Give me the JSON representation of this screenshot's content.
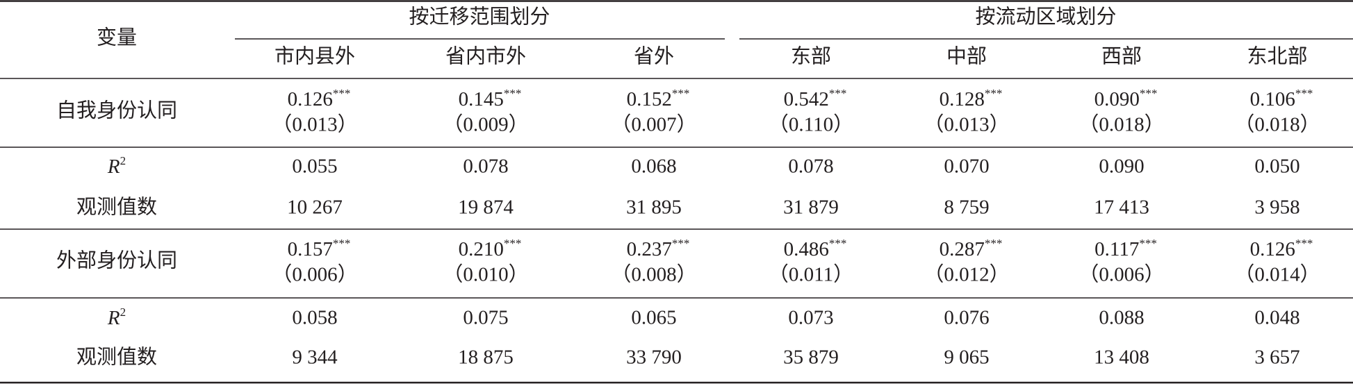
{
  "table": {
    "header": {
      "row_label": "变量",
      "groups": [
        {
          "label": "按迁移范围划分",
          "columns": [
            "市内县外",
            "省内市外",
            "省外"
          ]
        },
        {
          "label": "按流动区域划分",
          "columns": [
            "东部",
            "中部",
            "西部",
            "东北部"
          ]
        }
      ]
    },
    "sections": [
      {
        "label": "自我身份认同",
        "coefficients": [
          {
            "value": "0.126",
            "stars": "***",
            "se": "（0.013）"
          },
          {
            "value": "0.145",
            "stars": "***",
            "se": "（0.009）"
          },
          {
            "value": "0.152",
            "stars": "***",
            "se": "（0.007）"
          },
          {
            "value": "0.542",
            "stars": "***",
            "se": "（0.110）"
          },
          {
            "value": "0.128",
            "stars": "***",
            "se": "（0.013）"
          },
          {
            "value": "0.090",
            "stars": "***",
            "se": "（0.018）"
          },
          {
            "value": "0.106",
            "stars": "***",
            "se": "（0.018）"
          }
        ],
        "r2_label": {
          "base": "R",
          "sup": "2"
        },
        "r2": [
          "0.055",
          "0.078",
          "0.068",
          "0.078",
          "0.070",
          "0.090",
          "0.050"
        ],
        "n_label": "观测值数",
        "n": [
          "10 267",
          "19 874",
          "31 895",
          "31 879",
          "8 759",
          "17 413",
          "3 958"
        ]
      },
      {
        "label": "外部身份认同",
        "coefficients": [
          {
            "value": "0.157",
            "stars": "***",
            "se": "（0.006）"
          },
          {
            "value": "0.210",
            "stars": "***",
            "se": "（0.010）"
          },
          {
            "value": "0.237",
            "stars": "***",
            "se": "（0.008）"
          },
          {
            "value": "0.486",
            "stars": "***",
            "se": "（0.011）"
          },
          {
            "value": "0.287",
            "stars": "***",
            "se": "（0.012）"
          },
          {
            "value": "0.117",
            "stars": "***",
            "se": "（0.006）"
          },
          {
            "value": "0.126",
            "stars": "***",
            "se": "（0.014）"
          }
        ],
        "r2_label": {
          "base": "R",
          "sup": "2"
        },
        "r2": [
          "0.058",
          "0.075",
          "0.065",
          "0.073",
          "0.076",
          "0.088",
          "0.048"
        ],
        "n_label": "观测值数",
        "n": [
          "9 344",
          "18 875",
          "33 790",
          "35 879",
          "9 065",
          "13 408",
          "3 657"
        ]
      }
    ]
  }
}
